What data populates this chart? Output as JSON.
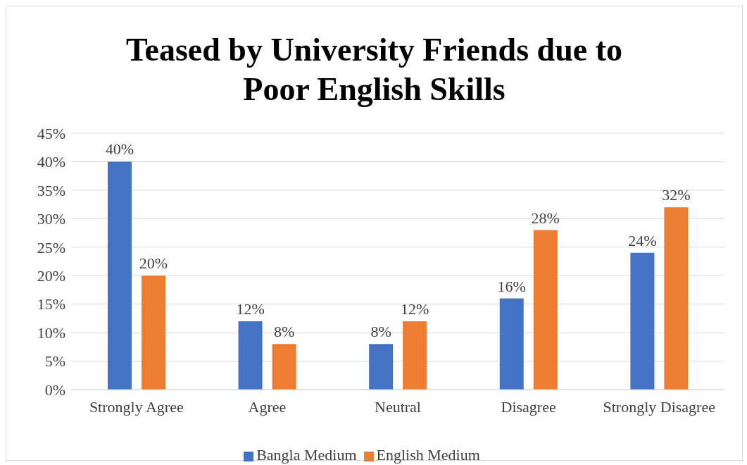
{
  "chart_data": {
    "type": "bar",
    "title": "Teased by University Friends due to Poor English Skills",
    "categories": [
      "Strongly Agree",
      "Agree",
      "Neutral",
      "Disagree",
      "Strongly Disagree"
    ],
    "series": [
      {
        "name": "Bangla Medium",
        "color": "#4472c4",
        "values": [
          40,
          12,
          8,
          16,
          24
        ],
        "value_labels": [
          "40%",
          "12%",
          "8%",
          "16%",
          "24%"
        ]
      },
      {
        "name": "English Medium",
        "color": "#ed7d31",
        "values": [
          20,
          8,
          12,
          28,
          32
        ],
        "value_labels": [
          "20%",
          "8%",
          "12%",
          "28%",
          "32%"
        ]
      }
    ],
    "ylim": [
      0,
      45
    ],
    "yticks": [
      {
        "value": 0,
        "label": "0%"
      },
      {
        "value": 5,
        "label": "5%"
      },
      {
        "value": 10,
        "label": "10%"
      },
      {
        "value": 15,
        "label": "15%"
      },
      {
        "value": 20,
        "label": "20%"
      },
      {
        "value": 25,
        "label": "25%"
      },
      {
        "value": 30,
        "label": "30%"
      },
      {
        "value": 35,
        "label": "35%"
      },
      {
        "value": 40,
        "label": "40%"
      },
      {
        "value": 45,
        "label": "45%"
      }
    ],
    "grid": "y",
    "legend": "bottom"
  }
}
